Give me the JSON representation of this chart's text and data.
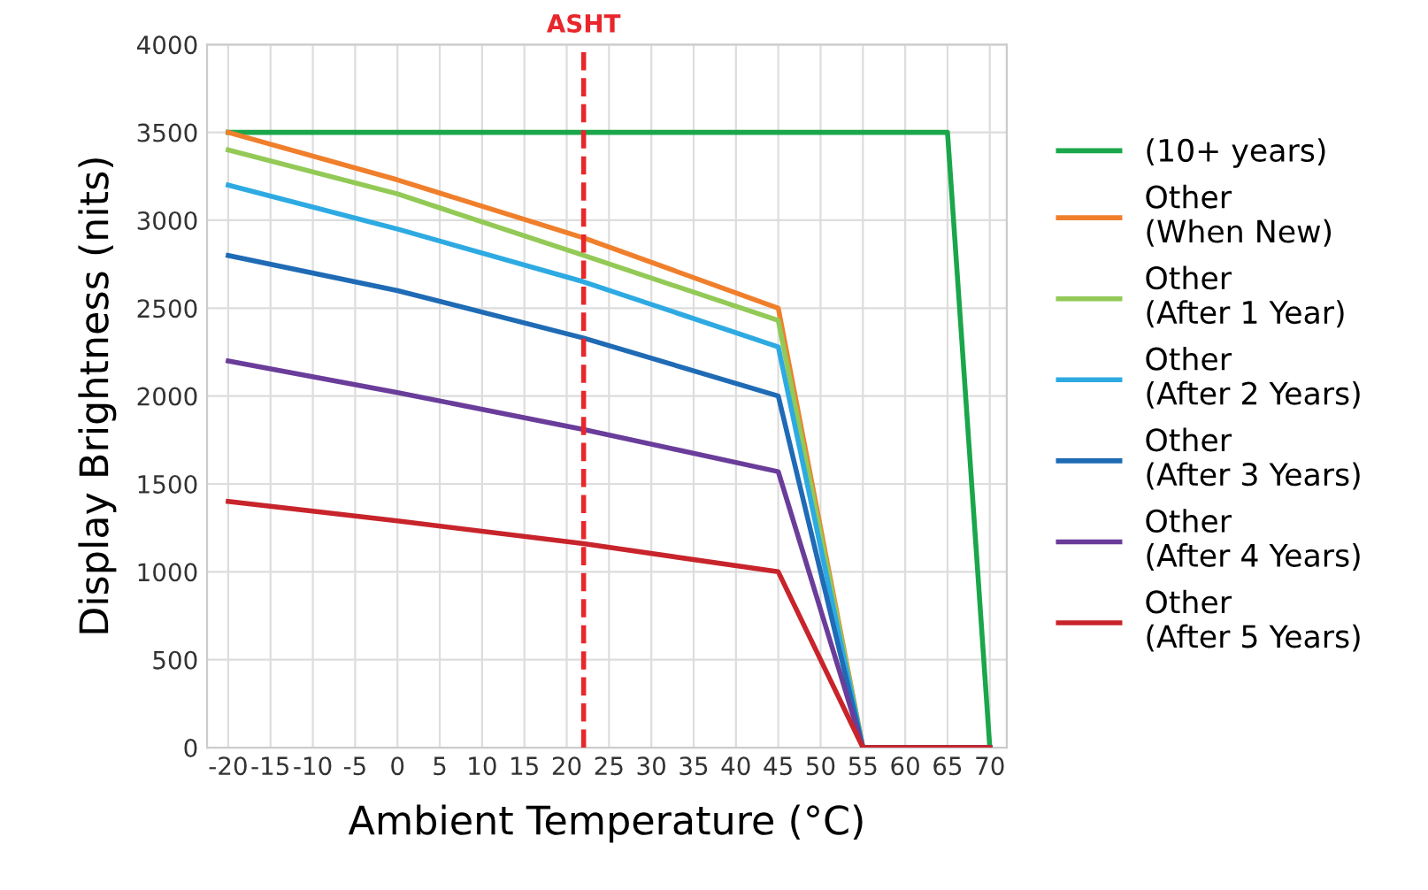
{
  "chart_data": {
    "type": "line",
    "xlabel": "Ambient Temperature (°C)",
    "ylabel": "Display Brightness (nits)",
    "xlim": [
      -22.5,
      72
    ],
    "ylim": [
      0,
      4000
    ],
    "xticks": [
      -20,
      -15,
      -10,
      -5,
      0,
      5,
      10,
      15,
      20,
      25,
      30,
      35,
      40,
      45,
      50,
      55,
      60,
      65,
      70
    ],
    "yticks": [
      0,
      500,
      1000,
      1500,
      2000,
      2500,
      3000,
      3500,
      4000
    ],
    "grid": true,
    "legend": "right",
    "marker": "none",
    "line_style": "solid",
    "ref_lines": [
      {
        "axis": "x",
        "value": 22,
        "label": "ASHT",
        "color": "#e8262b",
        "line_style": "dashed"
      }
    ],
    "series": [
      {
        "name": "(10+ years)",
        "color": "#1aa64a",
        "x": [
          -20,
          65,
          70
        ],
        "values": [
          3500,
          3500,
          0
        ]
      },
      {
        "name": "Other\n(When New)",
        "color": "#f07f2c",
        "x": [
          -20,
          0,
          22,
          45,
          55,
          70
        ],
        "values": [
          3500,
          3230,
          2900,
          2500,
          0,
          0
        ]
      },
      {
        "name": "Other\n(After 1 Year)",
        "color": "#93c956",
        "x": [
          -20,
          0,
          22,
          45,
          55,
          70
        ],
        "values": [
          3400,
          3150,
          2800,
          2430,
          0,
          0
        ]
      },
      {
        "name": "Other\n(After 2 Years)",
        "color": "#2eaae2",
        "x": [
          -20,
          0,
          22,
          45,
          55,
          70
        ],
        "values": [
          3200,
          2950,
          2650,
          2280,
          0,
          0
        ]
      },
      {
        "name": "Other\n(After 3 Years)",
        "color": "#1f6bb5",
        "x": [
          -20,
          0,
          22,
          45,
          55,
          70
        ],
        "values": [
          2800,
          2600,
          2330,
          2000,
          0,
          0
        ]
      },
      {
        "name": "Other\n(After 4 Years)",
        "color": "#6a3d9a",
        "x": [
          -20,
          0,
          22,
          45,
          55,
          70
        ],
        "values": [
          2200,
          2020,
          1810,
          1570,
          0,
          0
        ]
      },
      {
        "name": "Other\n(After 5 Years)",
        "color": "#c8242b",
        "x": [
          -20,
          0,
          22,
          45,
          55,
          70
        ],
        "values": [
          1400,
          1290,
          1160,
          1000,
          0,
          0
        ]
      }
    ]
  }
}
